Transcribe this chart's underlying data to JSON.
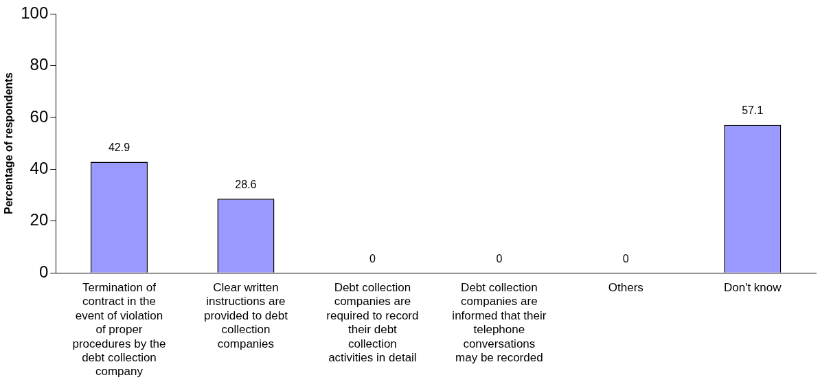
{
  "chart_data": {
    "type": "bar",
    "ylabel": "Percentage of respondents",
    "categories": [
      "Termination of contract in the event of violation of proper procedures by the debt collection company",
      "Clear written instructions are provided to debt collection companies",
      "Debt collection companies are required to record their debt collection activities in detail",
      "Debt collection companies are informed that their telephone conversations may be recorded",
      "Others",
      "Don't know"
    ],
    "values": [
      42.9,
      28.6,
      0,
      0,
      0,
      57.1
    ],
    "color": "#9999ff",
    "ylim": [
      0,
      100
    ],
    "yticks": [
      0,
      20,
      40,
      60,
      80,
      100
    ],
    "grid": false,
    "data_labels": true
  }
}
